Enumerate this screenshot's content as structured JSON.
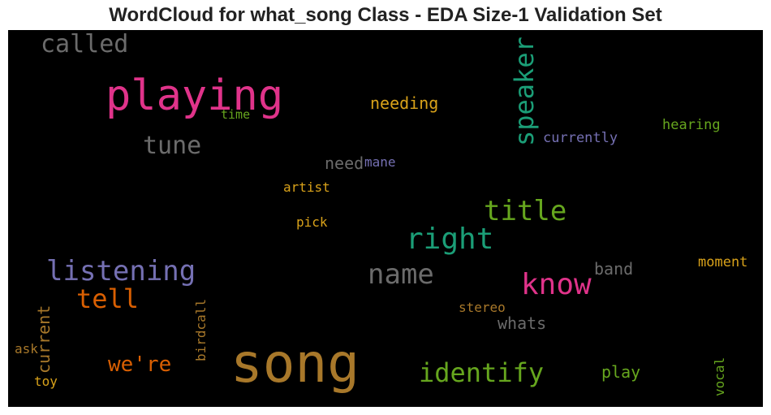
{
  "chart_data": {
    "type": "wordcloud",
    "title": "WordCloud for what_song Class - EDA Size-1 Validation Set",
    "background": "#000000",
    "words": [
      {
        "text": "song",
        "color": "#a8782a",
        "orientation": "horizontal"
      },
      {
        "text": "playing",
        "color": "#e0338a",
        "orientation": "horizontal"
      },
      {
        "text": "called",
        "color": "#6b6b6b",
        "orientation": "horizontal"
      },
      {
        "text": "speaker",
        "color": "#1b9e77",
        "orientation": "vertical"
      },
      {
        "text": "tune",
        "color": "#6b6b6b",
        "orientation": "horizontal"
      },
      {
        "text": "needing",
        "color": "#d9a21a",
        "orientation": "horizontal"
      },
      {
        "text": "time",
        "color": "#66a61e",
        "orientation": "horizontal"
      },
      {
        "text": "currently",
        "color": "#7570b3",
        "orientation": "horizontal"
      },
      {
        "text": "hearing",
        "color": "#66a61e",
        "orientation": "horizontal"
      },
      {
        "text": "need",
        "color": "#6b6b6b",
        "orientation": "horizontal"
      },
      {
        "text": "mane",
        "color": "#7570b3",
        "orientation": "horizontal"
      },
      {
        "text": "artist",
        "color": "#d9a21a",
        "orientation": "horizontal"
      },
      {
        "text": "title",
        "color": "#66a61e",
        "orientation": "horizontal"
      },
      {
        "text": "right",
        "color": "#1b9e77",
        "orientation": "horizontal"
      },
      {
        "text": "pick",
        "color": "#d9a21a",
        "orientation": "horizontal"
      },
      {
        "text": "listening",
        "color": "#7570b3",
        "orientation": "horizontal"
      },
      {
        "text": "name",
        "color": "#6b6b6b",
        "orientation": "horizontal"
      },
      {
        "text": "know",
        "color": "#e0338a",
        "orientation": "horizontal"
      },
      {
        "text": "band",
        "color": "#6b6b6b",
        "orientation": "horizontal"
      },
      {
        "text": "moment",
        "color": "#d9a21a",
        "orientation": "horizontal"
      },
      {
        "text": "tell",
        "color": "#d95f02",
        "orientation": "horizontal"
      },
      {
        "text": "current",
        "color": "#a8782a",
        "orientation": "vertical"
      },
      {
        "text": "birdcall",
        "color": "#a8782a",
        "orientation": "vertical"
      },
      {
        "text": "stereo",
        "color": "#a8782a",
        "orientation": "horizontal"
      },
      {
        "text": "whats",
        "color": "#6b6b6b",
        "orientation": "horizontal"
      },
      {
        "text": "ask",
        "color": "#a8782a",
        "orientation": "horizontal"
      },
      {
        "text": "we're",
        "color": "#d95f02",
        "orientation": "horizontal"
      },
      {
        "text": "identify",
        "color": "#66a61e",
        "orientation": "horizontal"
      },
      {
        "text": "play",
        "color": "#66a61e",
        "orientation": "horizontal"
      },
      {
        "text": "vocal",
        "color": "#66a61e",
        "orientation": "vertical"
      },
      {
        "text": "toy",
        "color": "#d9a21a",
        "orientation": "horizontal"
      }
    ]
  }
}
